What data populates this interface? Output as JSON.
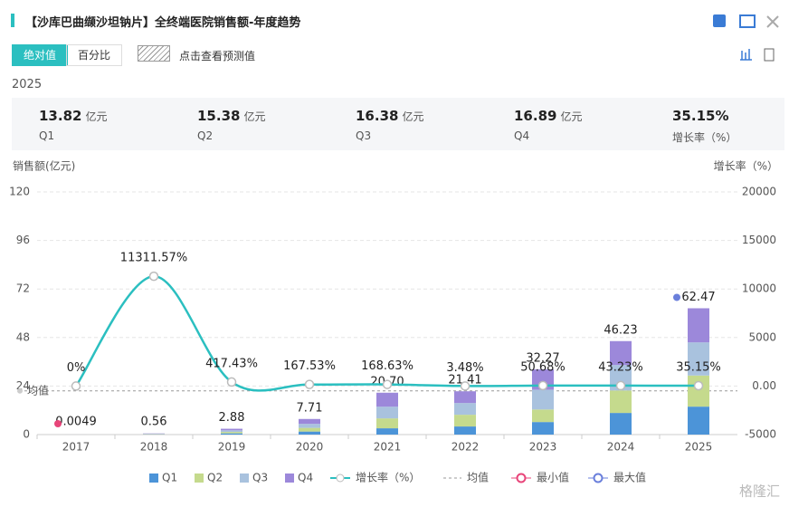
{
  "header": {
    "title": "【沙库巴曲缬沙坦钠片】全终端医院销售额-年度趋势"
  },
  "controls": {
    "toggle": [
      "绝对值",
      "百分比"
    ],
    "forecast": "点击查看预测值"
  },
  "year": "2025",
  "summary": [
    {
      "value": "13.82",
      "unit": "亿元",
      "label": "Q1"
    },
    {
      "value": "15.38",
      "unit": "亿元",
      "label": "Q2"
    },
    {
      "value": "16.38",
      "unit": "亿元",
      "label": "Q3"
    },
    {
      "value": "16.89",
      "unit": "亿元",
      "label": "Q4"
    },
    {
      "value": "35.15%",
      "label": "增长率（%）"
    }
  ],
  "watermark": "格隆汇",
  "chart_data": {
    "type": "bar",
    "y_label": "销售额(亿元)",
    "y2_label": "增长率（%）",
    "categories": [
      "2017",
      "2018",
      "2019",
      "2020",
      "2021",
      "2022",
      "2023",
      "2024",
      "2025"
    ],
    "ylim": [
      0,
      120
    ],
    "yticks": [
      0,
      24,
      48,
      72,
      96,
      120
    ],
    "y2lim": [
      -5000,
      20000
    ],
    "y2ticks": [
      -5000,
      {
        "value": 0,
        "label": "0.00"
      },
      5000,
      10000,
      15000,
      20000
    ],
    "grid": true,
    "series": [
      {
        "name": "Q1",
        "color": "#4c94d8",
        "values": [
          null,
          0.1,
          0.6,
          1.5,
          3.1,
          4.0,
          6.2,
          10.7,
          13.82
        ]
      },
      {
        "name": "Q2",
        "color": "#c5da8d",
        "values": [
          null,
          0.13,
          0.7,
          1.8,
          4.9,
          5.8,
          6.2,
          11.1,
          15.38
        ]
      },
      {
        "name": "Q3",
        "color": "#a9c2de",
        "values": [
          null,
          0.15,
          0.8,
          2.0,
          5.8,
          5.8,
          9.8,
          12.6,
          16.38
        ]
      },
      {
        "name": "Q4",
        "color": "#9c88da",
        "values": [
          0.0049,
          0.18,
          0.78,
          2.41,
          6.9,
          5.81,
          10.07,
          11.83,
          16.89
        ]
      },
      {
        "name": "增长率（%）",
        "type": "line",
        "axis": "y2",
        "color": "#2bbfc0",
        "values": [
          0,
          11311.57,
          417.43,
          167.53,
          168.63,
          3.48,
          50.68,
          43.23,
          35.15
        ],
        "value_labels": [
          "0%",
          "11311.57%",
          "417.43%",
          "167.53%",
          "168.63%",
          "3.48%",
          "50.68%",
          "43.23%",
          "35.15%"
        ]
      }
    ],
    "totals": {
      "values": [
        0.0049,
        0.56,
        2.88,
        7.71,
        20.7,
        21.41,
        32.27,
        46.23,
        62.47
      ],
      "value_labels": [
        "0.0049",
        "0.56",
        "2.88",
        "7.71",
        "20.70",
        "21.41",
        "32.27",
        "46.23",
        "62.47"
      ]
    },
    "mean": {
      "name": "均值",
      "value": 21.58,
      "color": "#999999"
    },
    "min_marker": {
      "name": "最小值",
      "color": "#e8457a"
    },
    "max_marker": {
      "name": "最大值",
      "color": "#6a7fdb"
    }
  }
}
